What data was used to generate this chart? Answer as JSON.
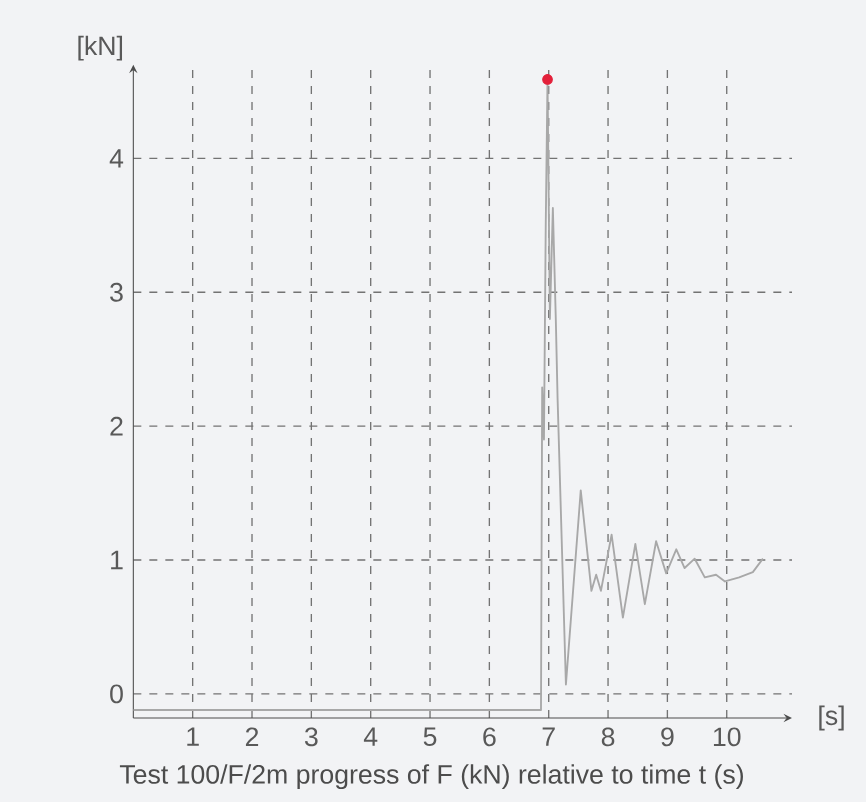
{
  "chart_data": {
    "type": "line",
    "xlabel": "[s]",
    "ylabel": "[kN]",
    "annotations": [
      "Test 100/F/2m progress of F (kN) relative to time t (s)"
    ],
    "xlim": [
      0,
      11.1
    ],
    "ylim": [
      -0.18,
      4.7
    ],
    "xticks": [
      1,
      2,
      3,
      4,
      5,
      6,
      7,
      8,
      9,
      10
    ],
    "yticks": [
      0,
      1,
      2,
      3,
      4
    ],
    "grid": true,
    "series": [
      {
        "color": "#a8a8a8",
        "x": [
          0,
          6.87,
          6.89,
          6.92,
          6.95,
          6.98,
          7.02,
          7.07,
          7.12,
          7.15,
          7.29,
          7.54,
          7.72,
          7.8,
          7.88,
          8.06,
          8.25,
          8.46,
          8.62,
          8.81,
          8.98,
          9.15,
          9.29,
          9.46,
          9.63,
          9.82,
          9.97,
          10.21,
          10.44,
          10.61
        ],
        "values": [
          -0.12,
          -0.12,
          2.29,
          1.9,
          3.5,
          4.59,
          2.8,
          3.63,
          2.79,
          2.2,
          0.07,
          1.52,
          0.77,
          0.89,
          0.77,
          1.19,
          0.57,
          1.12,
          0.67,
          1.14,
          0.9,
          1.08,
          0.94,
          1.01,
          0.87,
          0.89,
          0.84,
          0.87,
          0.91,
          1.01
        ]
      },
      {
        "type": "scatter",
        "color": "#e3203a",
        "x": [
          6.98
        ],
        "values": [
          4.59
        ]
      }
    ]
  }
}
